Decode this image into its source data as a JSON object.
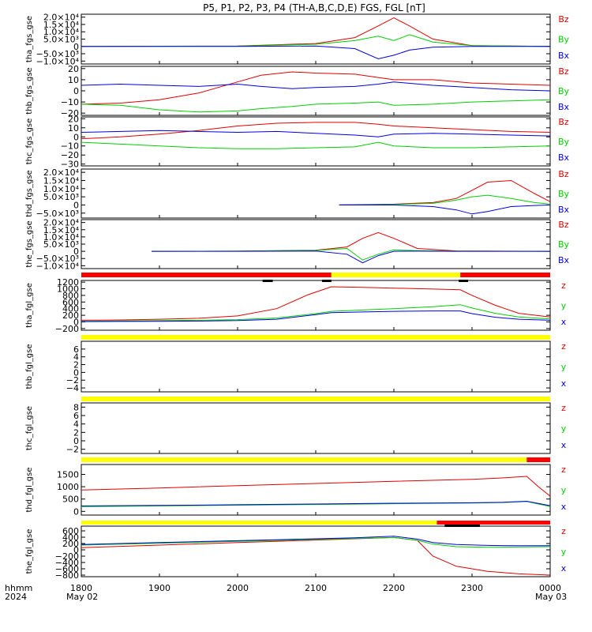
{
  "title": "P5, P1, P2, P3, P4 (TH-A,B,C,D,E) FGS, FGL [nT]",
  "colors": {
    "z": "#e00000",
    "y": "#00d000",
    "x": "#0000e0",
    "bar_red": "#ff0000",
    "bar_yellow": "#ffff00",
    "bar_black": "#000000"
  },
  "time_axis": {
    "row_label": "hhmm",
    "year_label": "2024",
    "ticks": [
      "1800",
      "1900",
      "2000",
      "2100",
      "2200",
      "2300",
      "0000"
    ],
    "date_left": "May 02",
    "date_right": "May 03"
  },
  "chart_data": {
    "type": "line",
    "x_unit": "hours since 2024-05-02 18:00 UT",
    "xlim": [
      0,
      6
    ],
    "panels": [
      {
        "ylabel": "tha_fgs_gse",
        "legend": [
          "Bz",
          "By",
          "Bx"
        ],
        "yticks": [
          "2.0×10⁴",
          "1.5×10⁴",
          "1.0×10⁴",
          "5.0×10³",
          "0",
          "−5.0×10³",
          "−1.0×10⁴"
        ],
        "ylim": [
          -12000,
          22000
        ],
        "series": [
          {
            "name": "Bz",
            "x": [
              0,
              2.0,
              3.0,
              3.5,
              3.8,
              4.0,
              4.2,
              4.5,
              5.0,
              6.0
            ],
            "y": [
              0,
              300,
              2000,
              6000,
              14000,
              19500,
              14000,
              5000,
              600,
              0
            ]
          },
          {
            "name": "By",
            "x": [
              0,
              2.0,
              3.0,
              3.5,
              3.8,
              4.0,
              4.2,
              4.5,
              5.0,
              6.0
            ],
            "y": [
              0,
              200,
              1500,
              4000,
              7000,
              4000,
              8000,
              3000,
              500,
              0
            ]
          },
          {
            "name": "Bx",
            "x": [
              0,
              2.0,
              3.0,
              3.5,
              3.8,
              4.0,
              4.2,
              4.5,
              5.0,
              6.0
            ],
            "y": [
              0,
              0,
              300,
              -1500,
              -8500,
              -6000,
              -2500,
              -500,
              0,
              0
            ]
          }
        ]
      },
      {
        "ylabel": "thb_fgs_gse",
        "legend": [
          "Bz",
          "By",
          "Bx"
        ],
        "yticks": [
          "20",
          "10",
          "0",
          "−10",
          "−20"
        ],
        "ylim": [
          -22,
          22
        ],
        "series": [
          {
            "name": "Bz",
            "x": [
              0,
              0.5,
              1.0,
              1.5,
              2.0,
              2.3,
              2.7,
              3.0,
              3.5,
              3.8,
              4.0,
              4.5,
              5.0,
              5.5,
              6.0
            ],
            "y": [
              -12,
              -11,
              -8,
              -2,
              8,
              14,
              17,
              16,
              15,
              12,
              10,
              10,
              7,
              6,
              5
            ]
          },
          {
            "name": "By",
            "x": [
              0,
              0.5,
              1.0,
              1.5,
              2.0,
              2.3,
              2.7,
              3.0,
              3.5,
              3.8,
              4.0,
              4.5,
              5.0,
              5.5,
              6.0
            ],
            "y": [
              -12,
              -13,
              -17,
              -19,
              -18,
              -16,
              -14,
              -12,
              -11,
              -10,
              -13,
              -12,
              -10,
              -9,
              -8
            ]
          },
          {
            "name": "Bx",
            "x": [
              0,
              0.5,
              1.0,
              1.5,
              2.0,
              2.3,
              2.7,
              3.0,
              3.5,
              3.8,
              4.0,
              4.5,
              5.0,
              5.5,
              6.0
            ],
            "y": [
              5,
              6,
              5,
              4,
              6,
              4,
              2,
              3,
              4,
              6,
              8,
              5,
              3,
              1,
              0
            ]
          }
        ]
      },
      {
        "ylabel": "thc_fgs_gse",
        "legend": [
          "Bz",
          "By",
          "Bx"
        ],
        "yticks": [
          "20",
          "10",
          "0",
          "−10",
          "−20",
          "−30"
        ],
        "ylim": [
          -32,
          22
        ],
        "series": [
          {
            "name": "Bz",
            "x": [
              0,
              0.5,
              1.0,
              1.5,
              2.0,
              2.5,
              3.0,
              3.5,
              3.8,
              4.0,
              4.5,
              5.0,
              5.5,
              6.0
            ],
            "y": [
              -2,
              0,
              3,
              7,
              12,
              15,
              16,
              16,
              14,
              12,
              10,
              8,
              6,
              5
            ]
          },
          {
            "name": "By",
            "x": [
              0,
              0.5,
              1.0,
              1.5,
              2.0,
              2.5,
              3.0,
              3.5,
              3.8,
              4.0,
              4.5,
              5.0,
              5.5,
              6.0
            ],
            "y": [
              -6,
              -8,
              -10,
              -12,
              -13,
              -13,
              -12,
              -11,
              -6,
              -10,
              -12,
              -12,
              -11,
              -10
            ]
          },
          {
            "name": "Bx",
            "x": [
              0,
              0.5,
              1.0,
              1.5,
              2.0,
              2.5,
              3.0,
              3.5,
              3.8,
              4.0,
              4.5,
              5.0,
              5.5,
              6.0
            ],
            "y": [
              5,
              6,
              7,
              6,
              5,
              6,
              4,
              2,
              0,
              3,
              4,
              3,
              2,
              1
            ]
          }
        ]
      },
      {
        "ylabel": "thd_fgs_gse",
        "legend": [
          "Bz",
          "By",
          "Bx"
        ],
        "yticks": [
          "2.0×10⁴",
          "1.5×10⁴",
          "1.0×10⁴",
          "5.0×10³",
          "0",
          "−5.0×10³"
        ],
        "ylim": [
          -8000,
          22000
        ],
        "series": [
          {
            "name": "Bz",
            "x": [
              3.3,
              4.0,
              4.5,
              4.8,
              5.0,
              5.2,
              5.5,
              5.8,
              6.0
            ],
            "y": [
              100,
              500,
              1500,
              4000,
              9000,
              14000,
              15000,
              7000,
              2000
            ]
          },
          {
            "name": "By",
            "x": [
              3.3,
              4.0,
              4.5,
              4.8,
              5.0,
              5.2,
              5.5,
              5.8,
              6.0
            ],
            "y": [
              50,
              300,
              1000,
              3000,
              5000,
              6000,
              4000,
              1500,
              500
            ]
          },
          {
            "name": "Bx",
            "x": [
              3.3,
              4.0,
              4.5,
              4.8,
              5.0,
              5.2,
              5.5,
              5.8,
              6.0
            ],
            "y": [
              0,
              0,
              -1000,
              -3000,
              -5500,
              -4000,
              -1000,
              -300,
              0
            ]
          }
        ]
      },
      {
        "ylabel": "the_fgs_gse",
        "legend": [
          "Bz",
          "By",
          "Bx"
        ],
        "yticks": [
          "2.0×10⁴",
          "1.5×10⁴",
          "1.0×10⁴",
          "5.0×10³",
          "0",
          "−5.0×10³",
          "−1.0×10⁴"
        ],
        "ylim": [
          -12000,
          22000
        ],
        "series": [
          {
            "name": "Bz",
            "x": [
              0.9,
              2.0,
              3.0,
              3.4,
              3.6,
              3.8,
              4.0,
              4.3,
              4.8,
              6.0
            ],
            "y": [
              0,
              100,
              800,
              3000,
              9000,
              13000,
              9000,
              2000,
              300,
              0
            ]
          },
          {
            "name": "By",
            "x": [
              0.9,
              2.0,
              3.0,
              3.4,
              3.6,
              3.8,
              4.0,
              4.3,
              4.8,
              6.0
            ],
            "y": [
              0,
              100,
              600,
              2000,
              -6000,
              -2000,
              1000,
              500,
              100,
              0
            ]
          },
          {
            "name": "Bx",
            "x": [
              0.9,
              2.0,
              3.0,
              3.4,
              3.6,
              3.8,
              4.0,
              4.3,
              4.8,
              6.0
            ],
            "y": [
              0,
              0,
              200,
              -2000,
              -8000,
              -3000,
              0,
              100,
              0,
              0
            ]
          }
        ]
      },
      {
        "ylabel": "tha_fgl_gse",
        "legend": [
          "z",
          "y",
          "x"
        ],
        "yticks": [
          "1200",
          "1000",
          "800",
          "600",
          "400",
          "200",
          "0",
          "−200"
        ],
        "ylim": [
          -250,
          1250
        ],
        "series": [
          {
            "name": "z",
            "x": [
              0,
              0.5,
              1.0,
              1.5,
              2.0,
              2.5,
              2.9,
              3.2,
              3.6,
              4.0,
              4.5,
              4.85,
              5.0,
              5.3,
              5.6,
              6.0
            ],
            "y": [
              50,
              60,
              80,
              110,
              180,
              400,
              820,
              1060,
              1040,
              1020,
              990,
              970,
              800,
              500,
              260,
              150
            ]
          },
          {
            "name": "y",
            "x": [
              0,
              0.5,
              1.0,
              1.5,
              2.0,
              2.5,
              3.0,
              3.2,
              3.6,
              4.0,
              4.5,
              4.85,
              5.0,
              5.3,
              5.6,
              6.0
            ],
            "y": [
              20,
              30,
              40,
              50,
              70,
              120,
              250,
              320,
              360,
              400,
              460,
              520,
              420,
              260,
              150,
              90
            ]
          },
          {
            "name": "x",
            "x": [
              0,
              0.5,
              1.0,
              1.5,
              2.0,
              2.5,
              3.0,
              3.2,
              3.6,
              4.0,
              4.5,
              4.85,
              5.0,
              5.3,
              5.6,
              6.0
            ],
            "y": [
              10,
              15,
              20,
              25,
              40,
              80,
              220,
              280,
              300,
              320,
              330,
              330,
              250,
              140,
              80,
              50
            ]
          }
        ]
      },
      {
        "ylabel": "thb_fgl_gse",
        "legend": [
          "z",
          "y",
          "x"
        ],
        "yticks": [
          "6",
          "4",
          "2",
          "0",
          "−2",
          "−4"
        ],
        "ylim": [
          -5,
          8
        ],
        "series": []
      },
      {
        "ylabel": "thc_fgl_gse",
        "legend": [
          "z",
          "y",
          "x"
        ],
        "yticks": [
          "8",
          "6",
          "4",
          "2",
          "0",
          "−2"
        ],
        "ylim": [
          -3,
          9
        ],
        "series": []
      },
      {
        "ylabel": "thd_fgl_gse",
        "legend": [
          "z",
          "y",
          "x"
        ],
        "yticks": [
          "1500",
          "1000",
          "500",
          "0"
        ],
        "ylim": [
          -150,
          1900
        ],
        "series": [
          {
            "name": "z",
            "x": [
              0,
              1,
              2,
              3,
              4,
              5,
              5.4,
              5.7,
              5.85,
              6.0
            ],
            "y": [
              870,
              950,
              1040,
              1130,
              1220,
              1300,
              1360,
              1420,
              1000,
              620
            ]
          },
          {
            "name": "y",
            "x": [
              0,
              1,
              2,
              3,
              4,
              5,
              5.4,
              5.7,
              5.85,
              6.0
            ],
            "y": [
              190,
              220,
              250,
              280,
              310,
              340,
              360,
              400,
              300,
              200
            ]
          },
          {
            "name": "x",
            "x": [
              0,
              1,
              2,
              3,
              4,
              5,
              5.4,
              5.7,
              5.85,
              6.0
            ],
            "y": [
              220,
              240,
              270,
              300,
              330,
              350,
              370,
              410,
              320,
              230
            ]
          }
        ]
      },
      {
        "ylabel": "the_fgl_gse",
        "legend": [
          "z",
          "y",
          "x"
        ],
        "yticks": [
          "600",
          "400",
          "200",
          "0",
          "−200",
          "−400",
          "−600",
          "−800"
        ],
        "ylim": [
          -850,
          750
        ],
        "series": [
          {
            "name": "z",
            "x": [
              0,
              0.5,
              1,
              1.5,
              2,
              2.5,
              3,
              3.5,
              4.0,
              4.3,
              4.5,
              4.8,
              5.2,
              5.6,
              6.0
            ],
            "y": [
              70,
              110,
              150,
              190,
              230,
              270,
              310,
              350,
              390,
              300,
              -200,
              -520,
              -680,
              -760,
              -800
            ]
          },
          {
            "name": "y",
            "x": [
              0,
              0.5,
              1,
              1.5,
              2,
              2.5,
              3,
              3.5,
              4.0,
              4.3,
              4.5,
              4.8,
              5.2,
              5.6,
              6.0
            ],
            "y": [
              150,
              180,
              210,
              240,
              270,
              300,
              330,
              360,
              390,
              300,
              180,
              100,
              80,
              90,
              100
            ]
          },
          {
            "name": "x",
            "x": [
              0,
              0.5,
              1,
              1.5,
              2,
              2.5,
              3,
              3.5,
              4.0,
              4.3,
              4.5,
              4.8,
              5.2,
              5.6,
              6.0
            ],
            "y": [
              170,
              200,
              230,
              260,
              290,
              320,
              350,
              380,
              430,
              340,
              230,
              170,
              140,
              130,
              130
            ]
          }
        ]
      }
    ],
    "mode_bars": [
      [
        {
          "x0": 0,
          "x1": 3.2,
          "color": "red"
        },
        {
          "x0": 3.2,
          "x1": 4.85,
          "color": "yellow"
        },
        {
          "x0": 4.85,
          "x1": 6,
          "color": "red"
        }
      ],
      [
        {
          "x0": 0,
          "x1": 6,
          "color": "yellow"
        }
      ],
      [
        {
          "x0": 0,
          "x1": 6,
          "color": "yellow"
        }
      ],
      [
        {
          "x0": 0,
          "x1": 5.7,
          "color": "yellow"
        },
        {
          "x0": 5.7,
          "x1": 6,
          "color": "red"
        }
      ],
      [
        {
          "x0": 0,
          "x1": 4.55,
          "color": "yellow"
        },
        {
          "x0": 4.55,
          "x1": 6,
          "color": "red"
        }
      ]
    ],
    "black_marks": [
      [
        {
          "x0": 2.32,
          "x1": 2.45
        },
        {
          "x0": 3.08,
          "x1": 3.2
        },
        {
          "x0": 4.83,
          "x1": 4.95
        }
      ],
      [],
      [],
      [],
      [
        {
          "x0": 4.65,
          "x1": 5.1
        }
      ]
    ]
  }
}
